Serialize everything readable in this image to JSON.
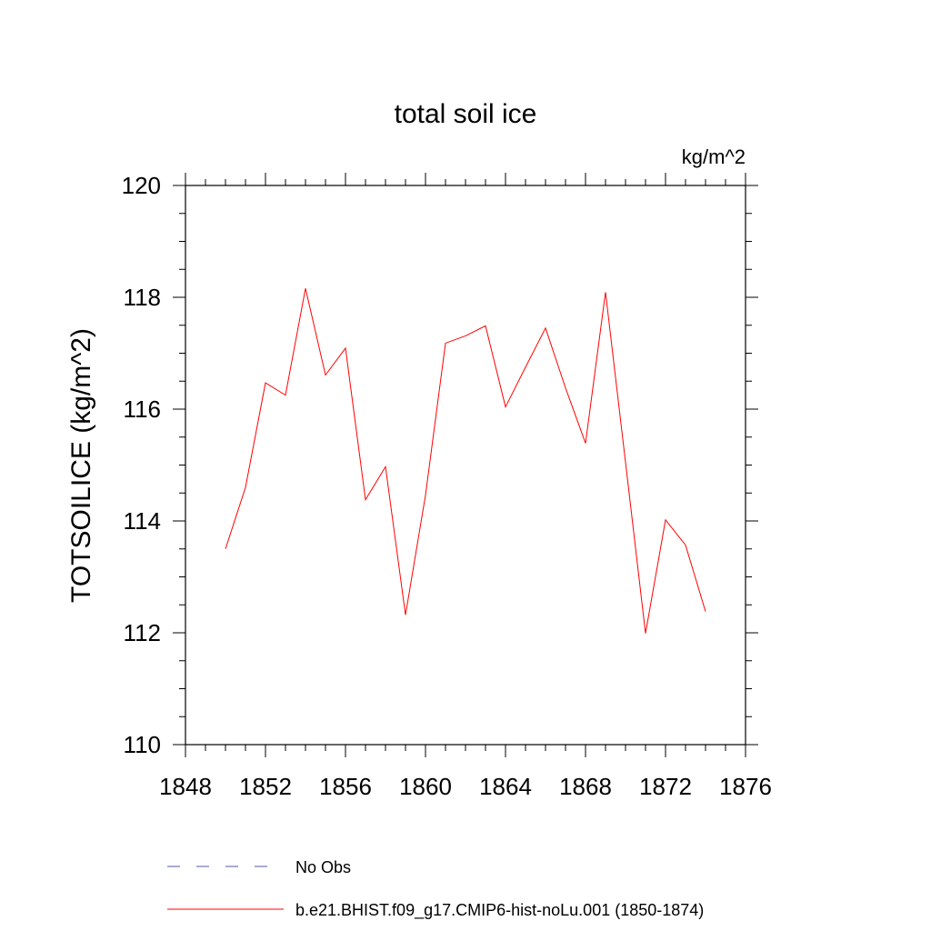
{
  "chart_data": {
    "type": "line",
    "title": "total soil ice",
    "subtitle": "",
    "units_label": "kg/m^2",
    "xlabel": "",
    "ylabel": "TOTSOILICE  (kg/m^2)",
    "xlim": [
      1848,
      1876
    ],
    "ylim": [
      110,
      120
    ],
    "x_ticks": [
      1848,
      1852,
      1856,
      1860,
      1864,
      1868,
      1872,
      1876
    ],
    "x_tick_labels": [
      "1848",
      "1852",
      "1856",
      "1860",
      "1864",
      "1868",
      "1872",
      "1876"
    ],
    "y_ticks": [
      110,
      112,
      114,
      116,
      118,
      120
    ],
    "y_tick_labels": [
      "110",
      "112",
      "114",
      "116",
      "118",
      "120"
    ],
    "grid": false,
    "legend_position": "bottom",
    "x": [
      1850,
      1851,
      1852,
      1853,
      1854,
      1855,
      1856,
      1857,
      1858,
      1859,
      1860,
      1861,
      1862,
      1863,
      1864,
      1865,
      1866,
      1867,
      1868,
      1869,
      1870,
      1871,
      1872,
      1873,
      1874
    ],
    "series": [
      {
        "name": "b.e21.BHIST.f09_g17.CMIP6-hist-noLu.001 (1850-1874)",
        "color": "#ff0000",
        "style": "solid",
        "values": [
          113.5,
          114.6,
          116.47,
          116.25,
          118.16,
          116.61,
          117.09,
          114.38,
          114.97,
          112.32,
          114.46,
          117.18,
          117.31,
          117.49,
          116.04,
          116.75,
          117.45,
          116.38,
          115.39,
          118.09,
          115.05,
          111.99,
          114.02,
          113.57,
          112.38
        ]
      }
    ],
    "legend": [
      {
        "label": "No Obs",
        "color": "#5555aa",
        "style": "dashed"
      },
      {
        "label": "b.e21.BHIST.f09_g17.CMIP6-hist-noLu.001 (1850-1874)",
        "color": "#ff0000",
        "style": "solid"
      }
    ]
  }
}
